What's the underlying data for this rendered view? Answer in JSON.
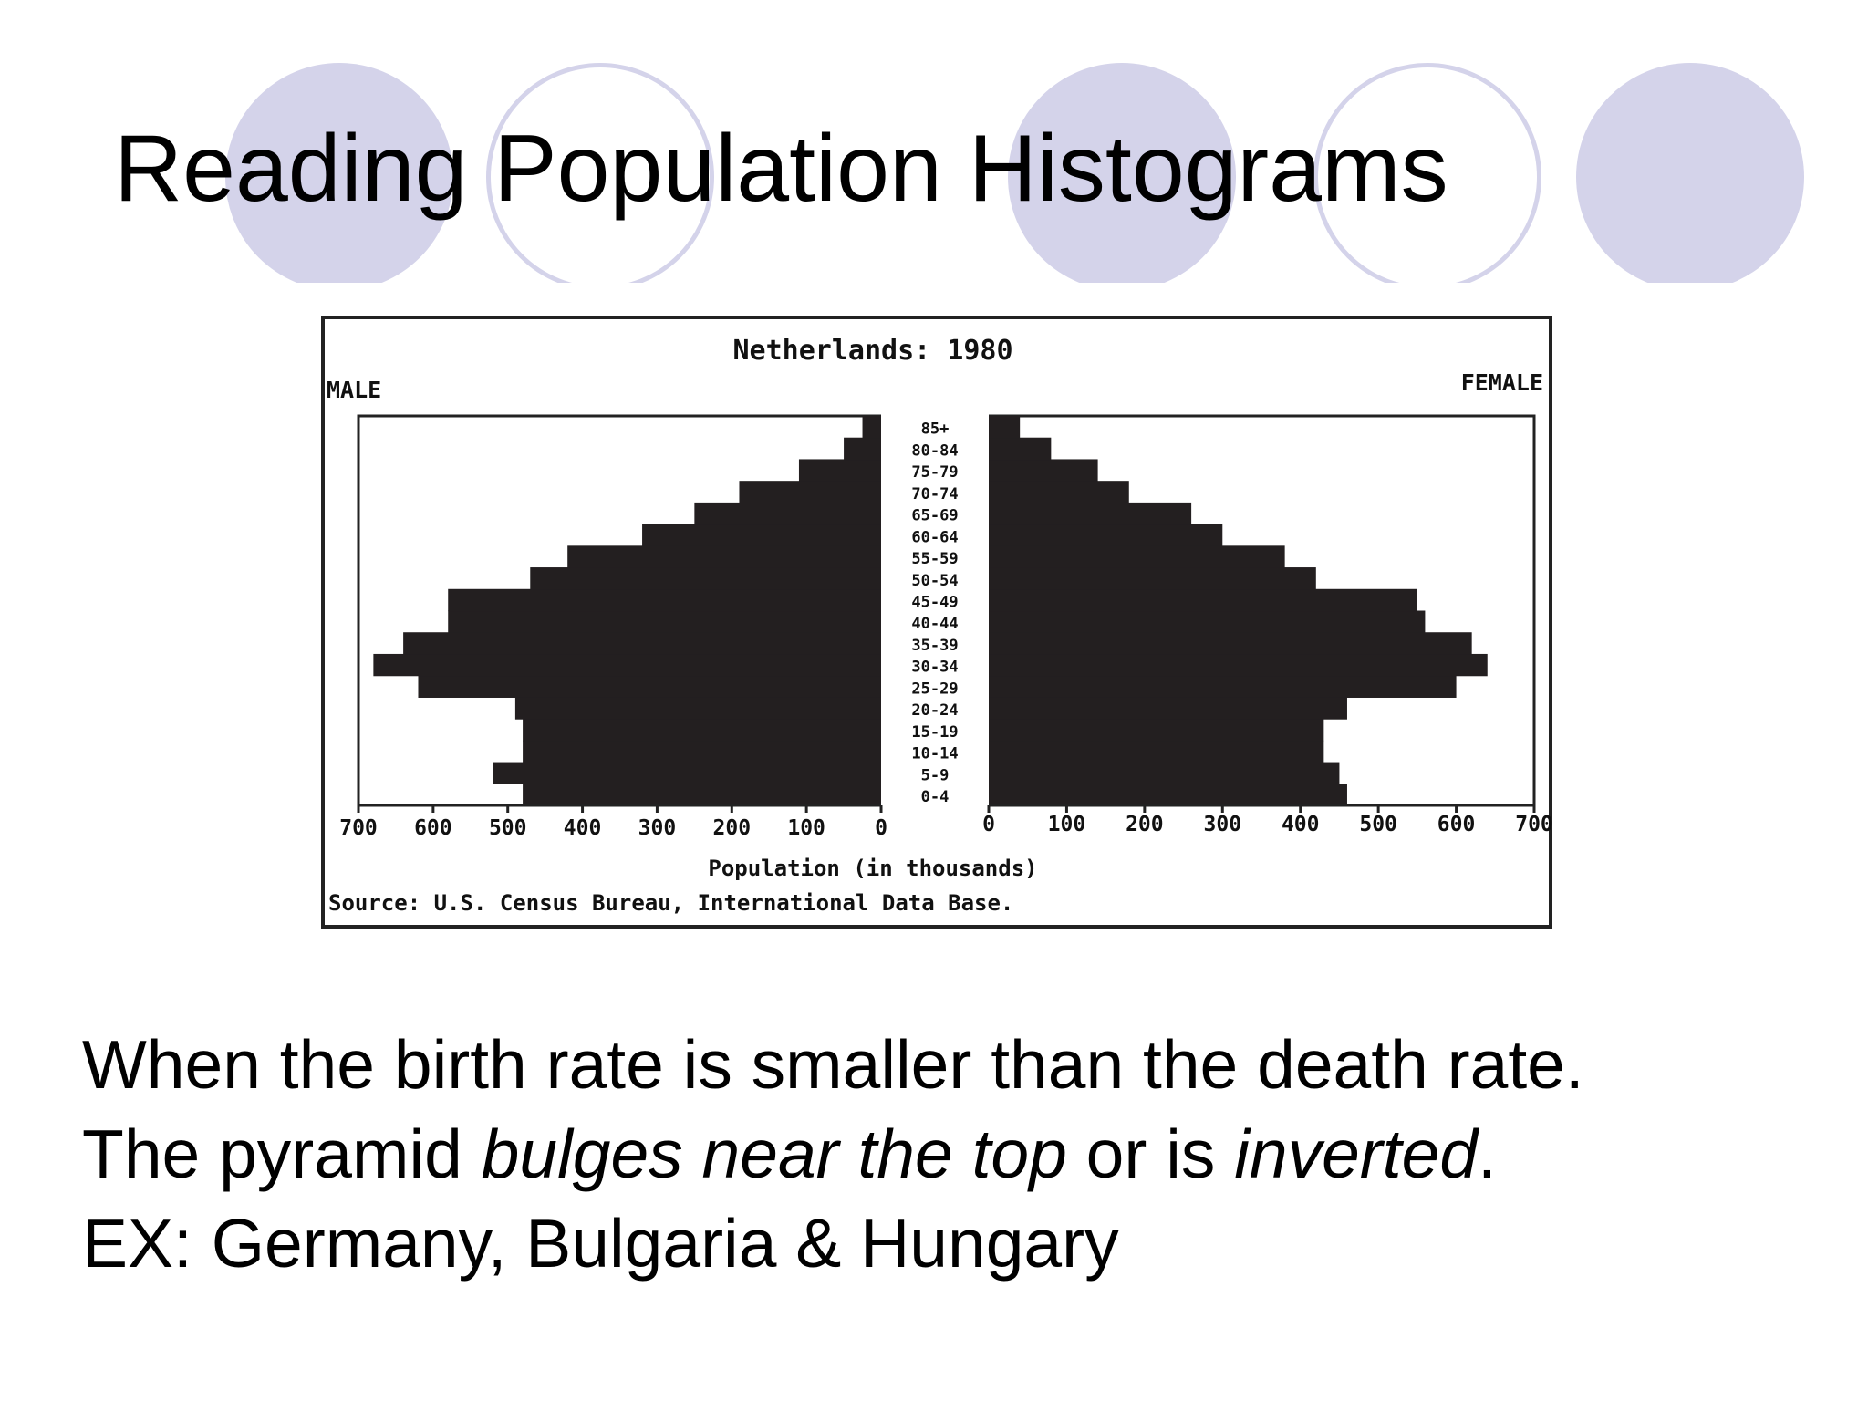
{
  "slide": {
    "title": "Reading Population Histograms",
    "decor_color": "#d4d3ea",
    "text_lines": [
      [
        {
          "text": "When the birth rate is smaller than the death rate.",
          "italic": false
        }
      ],
      [
        {
          "text": "The pyramid ",
          "italic": false
        },
        {
          "text": "bulges near the top",
          "italic": true
        },
        {
          "text": " or is ",
          "italic": false
        },
        {
          "text": "inverted",
          "italic": true
        },
        {
          "text": ".",
          "italic": false
        }
      ],
      [
        {
          "text": "EX:  Germany, Bulgaria & Hungary",
          "italic": false
        }
      ]
    ]
  },
  "chart_data": {
    "type": "bar",
    "orientation": "horizontal-population-pyramid",
    "title": "Netherlands: 1980",
    "left_label": "MALE",
    "right_label": "FEMALE",
    "xlabel": "Population (in thousands)",
    "source": "Source: U.S. Census Bureau, International Data Base.",
    "xlim": [
      0,
      700
    ],
    "tick_labels_male": [
      "700",
      "600",
      "500",
      "400",
      "300",
      "200",
      "100",
      "0"
    ],
    "tick_labels_female": [
      "0",
      "100",
      "200",
      "300",
      "400",
      "500",
      "600",
      "700"
    ],
    "categories": [
      "0-4",
      "5-9",
      "10-14",
      "15-19",
      "20-24",
      "25-29",
      "30-34",
      "35-39",
      "40-44",
      "45-49",
      "50-54",
      "55-59",
      "60-64",
      "65-69",
      "70-74",
      "75-79",
      "80-84",
      "85+"
    ],
    "series": [
      {
        "name": "MALE",
        "values": [
          480,
          520,
          480,
          480,
          490,
          620,
          680,
          640,
          580,
          580,
          470,
          420,
          320,
          250,
          190,
          110,
          50,
          25
        ]
      },
      {
        "name": "FEMALE",
        "values": [
          460,
          450,
          430,
          430,
          460,
          600,
          640,
          620,
          560,
          550,
          420,
          380,
          300,
          260,
          180,
          140,
          80,
          40
        ]
      }
    ],
    "colors": {
      "bars": "#231f20",
      "axes": "#222222"
    }
  }
}
